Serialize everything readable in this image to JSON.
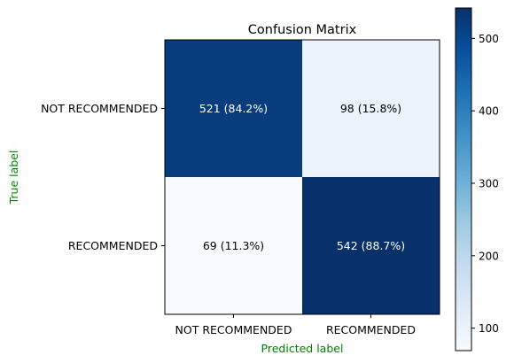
{
  "chart_data": {
    "type": "heatmap",
    "title": "Confusion Matrix",
    "xlabel": "Predicted label",
    "ylabel": "True label",
    "label_color": "#008000",
    "row_labels": [
      "NOT RECOMMENDED",
      "RECOMMENDED"
    ],
    "col_labels": [
      "NOT RECOMMENDED",
      "RECOMMENDED"
    ],
    "values": [
      [
        521,
        98
      ],
      [
        69,
        542
      ]
    ],
    "cell_labels": [
      [
        "521 (84.2%)",
        "98 (15.8%)"
      ],
      [
        "69 (11.3%)",
        "542 (88.7%)"
      ]
    ],
    "colormap": "Blues",
    "colorbar": {
      "range": [
        69,
        542
      ],
      "ticks": [
        100,
        200,
        300,
        400,
        500
      ],
      "tick_labels": [
        "100",
        "200",
        "300",
        "400",
        "500"
      ]
    }
  }
}
